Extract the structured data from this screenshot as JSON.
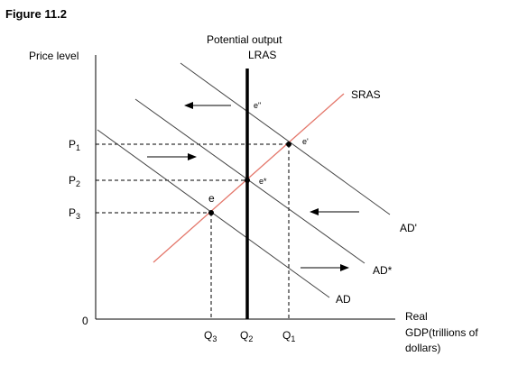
{
  "figure": {
    "title": "Figure 11.2"
  },
  "axes": {
    "y_label": "Price level",
    "x_label_line1": "Real",
    "x_label_line2": "GDP(trillions of",
    "x_label_line3": "dollars)",
    "origin": "0"
  },
  "lras": {
    "label_line1": "Potential output",
    "label_line2": "LRAS"
  },
  "curves": {
    "sras": "SRAS",
    "ad": "AD",
    "ad_star": "AD*",
    "ad_prime": "AD'"
  },
  "price_levels": {
    "p1": "P",
    "p1_sub": "1",
    "p2": "P",
    "p2_sub": "2",
    "p3": "P",
    "p3_sub": "3"
  },
  "quantities": {
    "q1": "Q",
    "q1_sub": "1",
    "q2": "Q",
    "q2_sub": "2",
    "q3": "Q",
    "q3_sub": "3"
  },
  "equilibria": {
    "e": "e",
    "e_star": "e*",
    "e_prime": "e'",
    "e_double_prime": "e\""
  },
  "colors": {
    "sras": "#e4776b",
    "lines": "#444444",
    "axis": "#000000",
    "lras": "#000000"
  }
}
